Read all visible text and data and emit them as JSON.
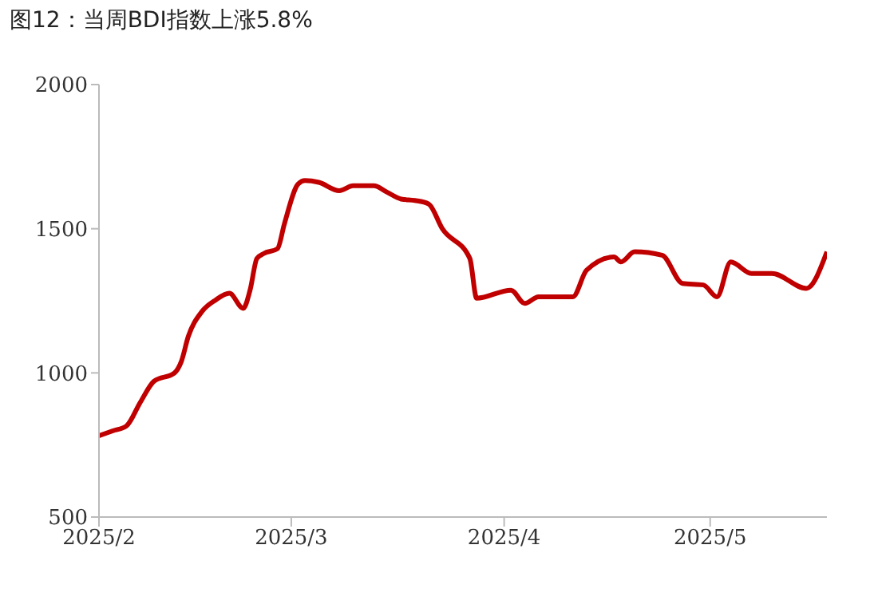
{
  "chart_data": {
    "type": "line",
    "title": "图12：当周BDI指数上涨5.8%",
    "x": [
      "2025-02-01",
      "2025-02-03",
      "2025-02-05",
      "2025-02-07",
      "2025-02-09",
      "2025-02-12",
      "2025-02-13",
      "2025-02-14",
      "2025-02-16",
      "2025-02-18",
      "2025-02-20",
      "2025-02-22",
      "2025-02-23",
      "2025-02-24",
      "2025-02-25",
      "2025-02-27",
      "2025-02-28",
      "2025-03-02",
      "2025-03-03",
      "2025-03-05",
      "2025-03-08",
      "2025-03-10",
      "2025-03-13",
      "2025-03-15",
      "2025-03-17",
      "2025-03-19",
      "2025-03-21",
      "2025-03-23",
      "2025-03-27",
      "2025-03-28",
      "2025-04-02",
      "2025-04-04",
      "2025-04-06",
      "2025-04-11",
      "2025-04-13",
      "2025-04-17",
      "2025-04-18",
      "2025-04-20",
      "2025-04-24",
      "2025-04-27",
      "2025-04-30",
      "2025-05-02",
      "2025-05-04",
      "2025-05-07",
      "2025-05-10",
      "2025-05-15",
      "2025-05-18"
    ],
    "series": [
      {
        "color": "#c00000",
        "values": [
          782,
          799,
          816,
          897,
          971,
          1000,
          1040,
          1126,
          1213,
          1253,
          1276,
          1224,
          1287,
          1397,
          1414,
          1431,
          1517,
          1655,
          1667,
          1661,
          1632,
          1649,
          1649,
          1626,
          1603,
          1598,
          1586,
          1500,
          1397,
          1259,
          1287,
          1241,
          1264,
          1264,
          1356,
          1402,
          1385,
          1420,
          1408,
          1310,
          1305,
          1264,
          1385,
          1345,
          1345,
          1293,
          1420
        ]
      }
    ],
    "xlim": [
      "2025-02-01",
      "2025-05-18"
    ],
    "xticks": [
      {
        "value": "2025-02-01",
        "label": "2025/2"
      },
      {
        "value": "2025-03-01",
        "label": "2025/3"
      },
      {
        "value": "2025-04-01",
        "label": "2025/4"
      },
      {
        "value": "2025-05-01",
        "label": "2025/5"
      }
    ],
    "ylim": [
      500,
      2000
    ],
    "yticks": [
      500,
      1000,
      1500,
      2000
    ],
    "grid": false,
    "legend": false,
    "marker": "none",
    "line_style": "solid"
  }
}
